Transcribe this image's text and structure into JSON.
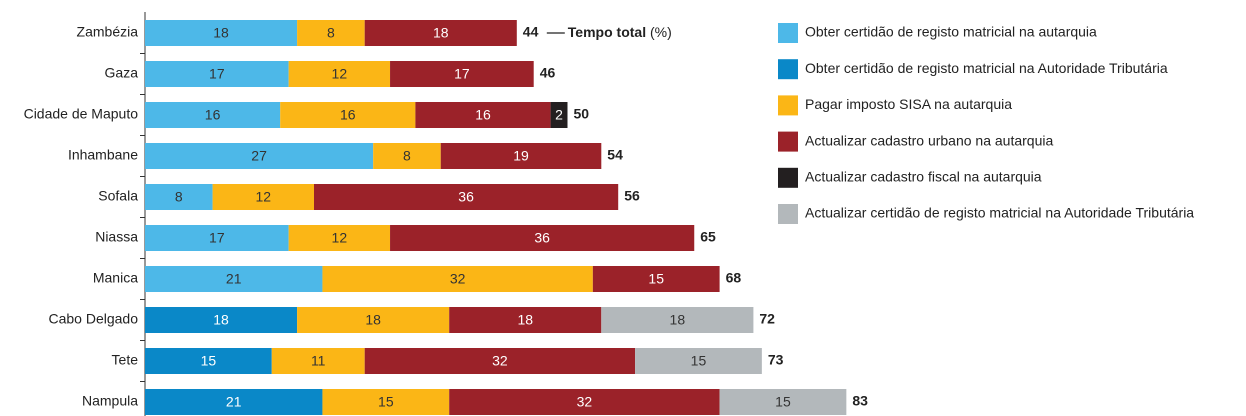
{
  "chart_data": {
    "type": "stacked-barh",
    "categories": [
      "Zambézia",
      "Gaza",
      "Cidade de Maputo",
      "Inhambane",
      "Sofala",
      "Niassa",
      "Manica",
      "Cabo Delgado",
      "Tete",
      "Nampula"
    ],
    "series": [
      {
        "name": "Obter certidão de registo matricial na autarquia",
        "color": "#4db8e8",
        "values": [
          18,
          17,
          16,
          27,
          8,
          17,
          21,
          null,
          null,
          null
        ]
      },
      {
        "name": "Obter certidão de registo matricial na Autoridade Tributária",
        "color": "#0a88c8",
        "values": [
          null,
          null,
          null,
          null,
          null,
          null,
          null,
          18,
          15,
          21
        ]
      },
      {
        "name": "Pagar imposto SISA na autarquia",
        "color": "#fbb616",
        "values": [
          8,
          12,
          16,
          8,
          12,
          12,
          32,
          18,
          11,
          15
        ]
      },
      {
        "name": "Actualizar cadastro urbano na autarquia",
        "color": "#9b2229",
        "values": [
          18,
          17,
          16,
          19,
          36,
          36,
          15,
          18,
          32,
          32
        ]
      },
      {
        "name": "Actualizar cadastro fiscal na autarquia",
        "color": "#231f20",
        "values": [
          null,
          null,
          2,
          null,
          null,
          null,
          null,
          null,
          null,
          null
        ]
      },
      {
        "name": "Actualizar certidão de registo matricial na Autoridade Tributária",
        "color": "#b3b8bb",
        "values": [
          null,
          null,
          null,
          null,
          null,
          null,
          null,
          18,
          15,
          15
        ]
      }
    ],
    "totals": [
      44,
      46,
      50,
      54,
      56,
      65,
      68,
      72,
      73,
      83
    ],
    "annotation": {
      "bold": "Tempo total",
      "unit": "(%)"
    }
  }
}
